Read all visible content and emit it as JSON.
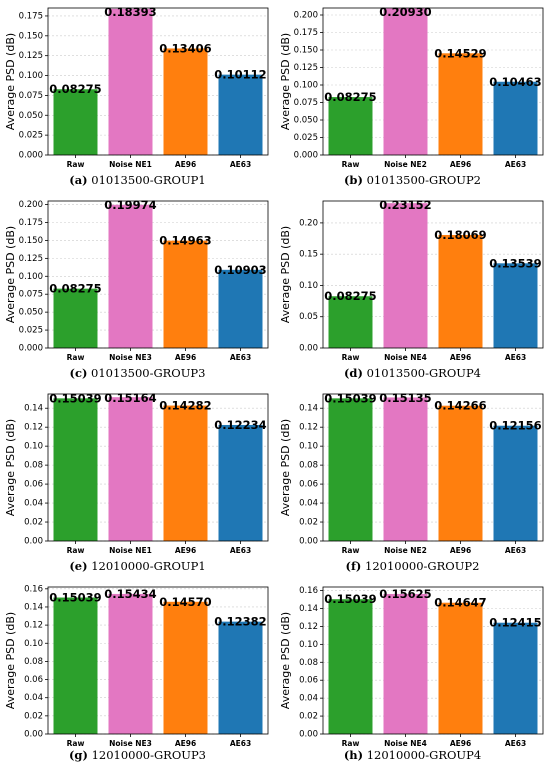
{
  "chart_data": [
    {
      "type": "bar",
      "panel_letter": "(a)",
      "caption": "01013500-GROUP1",
      "categories": [
        "Raw",
        "Noise NE1",
        "AE96",
        "AE63"
      ],
      "values": [
        0.08275,
        0.18393,
        0.13406,
        0.10112
      ],
      "value_labels": [
        "0.08275",
        "0.18393",
        "0.13406",
        "0.10112"
      ],
      "colors": [
        "#2ca02c",
        "#e377c2",
        "#ff7f0e",
        "#1f77b4"
      ],
      "ylabel": "Average PSD (dB)",
      "ylim": [
        0,
        0.185
      ],
      "yticks": [
        0.0,
        0.025,
        0.05,
        0.075,
        0.1,
        0.125,
        0.15,
        0.175
      ],
      "ytick_labels": [
        "0.000",
        "0.025",
        "0.050",
        "0.075",
        "0.100",
        "0.125",
        "0.150",
        "0.175"
      ],
      "grid": true
    },
    {
      "type": "bar",
      "panel_letter": "(b)",
      "caption": "01013500-GROUP2",
      "categories": [
        "Raw",
        "Noise NE2",
        "AE96",
        "AE63"
      ],
      "values": [
        0.08275,
        0.2093,
        0.14529,
        0.10463
      ],
      "value_labels": [
        "0.08275",
        "0.20930",
        "0.14529",
        "0.10463"
      ],
      "colors": [
        "#2ca02c",
        "#e377c2",
        "#ff7f0e",
        "#1f77b4"
      ],
      "ylabel": "Average PSD (dB)",
      "ylim": [
        0,
        0.21
      ],
      "yticks": [
        0.0,
        0.025,
        0.05,
        0.075,
        0.1,
        0.125,
        0.15,
        0.175,
        0.2
      ],
      "ytick_labels": [
        "0.000",
        "0.025",
        "0.050",
        "0.075",
        "0.100",
        "0.125",
        "0.150",
        "0.175",
        "0.200"
      ],
      "grid": true
    },
    {
      "type": "bar",
      "panel_letter": "(c)",
      "caption": "01013500-GROUP3",
      "categories": [
        "Raw",
        "Noise NE3",
        "AE96",
        "AE63"
      ],
      "values": [
        0.08275,
        0.19974,
        0.14963,
        0.10903
      ],
      "value_labels": [
        "0.08275",
        "0.19974",
        "0.14963",
        "0.10903"
      ],
      "colors": [
        "#2ca02c",
        "#e377c2",
        "#ff7f0e",
        "#1f77b4"
      ],
      "ylabel": "Average PSD (dB)",
      "ylim": [
        0,
        0.205
      ],
      "yticks": [
        0.0,
        0.025,
        0.05,
        0.075,
        0.1,
        0.125,
        0.15,
        0.175,
        0.2
      ],
      "ytick_labels": [
        "0.000",
        "0.025",
        "0.050",
        "0.075",
        "0.100",
        "0.125",
        "0.150",
        "0.175",
        "0.200"
      ],
      "grid": true
    },
    {
      "type": "bar",
      "panel_letter": "(d)",
      "caption": "01013500-GROUP4",
      "categories": [
        "Raw",
        "Noise NE4",
        "AE96",
        "AE63"
      ],
      "values": [
        0.08275,
        0.23152,
        0.18069,
        0.13539
      ],
      "value_labels": [
        "0.08275",
        "0.23152",
        "0.18069",
        "0.13539"
      ],
      "colors": [
        "#2ca02c",
        "#e377c2",
        "#ff7f0e",
        "#1f77b4"
      ],
      "ylabel": "Average PSD (dB)",
      "ylim": [
        0,
        0.235
      ],
      "yticks": [
        0.0,
        0.05,
        0.1,
        0.15,
        0.2
      ],
      "ytick_labels": [
        "0.00",
        "0.05",
        "0.10",
        "0.15",
        "0.20"
      ],
      "grid": true
    },
    {
      "type": "bar",
      "panel_letter": "(e)",
      "caption": "12010000-GROUP1",
      "categories": [
        "Raw",
        "Noise NE1",
        "AE96",
        "AE63"
      ],
      "values": [
        0.15039,
        0.15164,
        0.14282,
        0.12234
      ],
      "value_labels": [
        "0.15039",
        "0.15164",
        "0.14282",
        "0.12234"
      ],
      "colors": [
        "#2ca02c",
        "#e377c2",
        "#ff7f0e",
        "#1f77b4"
      ],
      "ylabel": "Average PSD (dB)",
      "ylim": [
        0,
        0.155
      ],
      "yticks": [
        0.0,
        0.02,
        0.04,
        0.06,
        0.08,
        0.1,
        0.12,
        0.14
      ],
      "ytick_labels": [
        "0.00",
        "0.02",
        "0.04",
        "0.06",
        "0.08",
        "0.10",
        "0.12",
        "0.14"
      ],
      "grid": true
    },
    {
      "type": "bar",
      "panel_letter": "(f)",
      "caption": "12010000-GROUP2",
      "categories": [
        "Raw",
        "Noise NE2",
        "AE96",
        "AE63"
      ],
      "values": [
        0.15039,
        0.15135,
        0.14266,
        0.12156
      ],
      "value_labels": [
        "0.15039",
        "0.15135",
        "0.14266",
        "0.12156"
      ],
      "colors": [
        "#2ca02c",
        "#e377c2",
        "#ff7f0e",
        "#1f77b4"
      ],
      "ylabel": "Average PSD (dB)",
      "ylim": [
        0,
        0.155
      ],
      "yticks": [
        0.0,
        0.02,
        0.04,
        0.06,
        0.08,
        0.1,
        0.12,
        0.14
      ],
      "ytick_labels": [
        "0.00",
        "0.02",
        "0.04",
        "0.06",
        "0.08",
        "0.10",
        "0.12",
        "0.14"
      ],
      "grid": true
    },
    {
      "type": "bar",
      "panel_letter": "(g)",
      "caption": "12010000-GROUP3",
      "categories": [
        "Raw",
        "Noise NE3",
        "AE96",
        "AE63"
      ],
      "values": [
        0.15039,
        0.15434,
        0.1457,
        0.12382
      ],
      "value_labels": [
        "0.15039",
        "0.15434",
        "0.14570",
        "0.12382"
      ],
      "colors": [
        "#2ca02c",
        "#e377c2",
        "#ff7f0e",
        "#1f77b4"
      ],
      "ylabel": "Average PSD (dB)",
      "ylim": [
        0,
        0.162
      ],
      "yticks": [
        0.0,
        0.02,
        0.04,
        0.06,
        0.08,
        0.1,
        0.12,
        0.14,
        0.16
      ],
      "ytick_labels": [
        "0.00",
        "0.02",
        "0.04",
        "0.06",
        "0.08",
        "0.10",
        "0.12",
        "0.14",
        "0.16"
      ],
      "grid": true
    },
    {
      "type": "bar",
      "panel_letter": "(h)",
      "caption": "12010000-GROUP4",
      "categories": [
        "Raw",
        "Noise NE4",
        "AE96",
        "AE63"
      ],
      "values": [
        0.15039,
        0.15625,
        0.14647,
        0.12415
      ],
      "value_labels": [
        "0.15039",
        "0.15625",
        "0.14647",
        "0.12415"
      ],
      "colors": [
        "#2ca02c",
        "#e377c2",
        "#ff7f0e",
        "#1f77b4"
      ],
      "ylabel": "Average PSD (dB)",
      "ylim": [
        0,
        0.164
      ],
      "yticks": [
        0.0,
        0.02,
        0.04,
        0.06,
        0.08,
        0.1,
        0.12,
        0.14,
        0.16
      ],
      "ytick_labels": [
        "0.00",
        "0.02",
        "0.04",
        "0.06",
        "0.08",
        "0.10",
        "0.12",
        "0.14",
        "0.16"
      ],
      "grid": true
    }
  ]
}
